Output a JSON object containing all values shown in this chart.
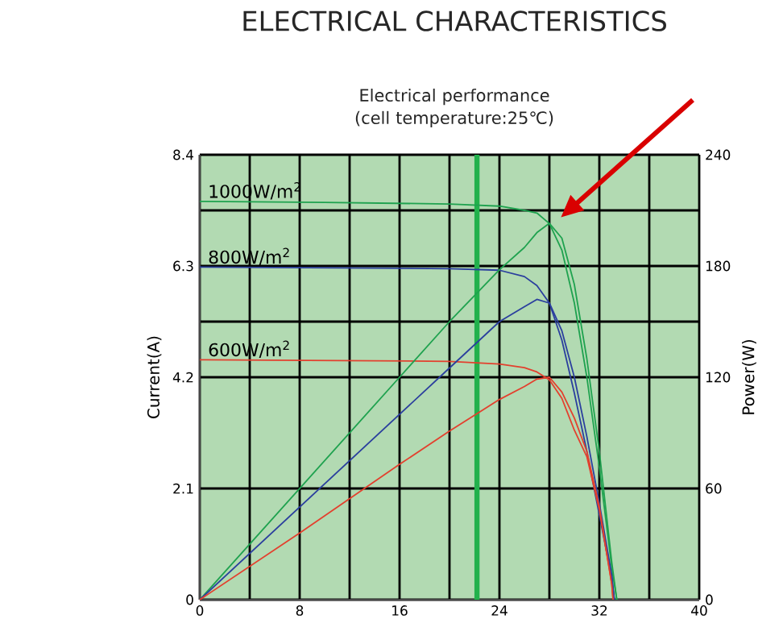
{
  "chart_data": {
    "type": "line",
    "title": "ELECTRICAL CHARACTERISTICS",
    "subtitle": "Electrical performance (cell temperature:25℃)",
    "xlabel": null,
    "ylabel": "Current(A)",
    "y2label": "Power(W)",
    "xlim": [
      0,
      40
    ],
    "xticks": [
      0,
      {
        "value": 4,
        "label": null
      },
      8,
      {
        "value": 12,
        "label": null
      },
      16,
      {
        "value": 20,
        "label": null
      },
      24,
      {
        "value": 28,
        "label": null
      },
      32,
      {
        "value": 36,
        "label": null
      },
      40
    ],
    "ylim": [
      0,
      8.4
    ],
    "yticks": [
      0,
      2.1,
      4.2,
      {
        "value": 5.25,
        "label": null
      },
      6.3,
      {
        "value": 7.35,
        "label": null
      },
      8.4
    ],
    "y2lim": [
      0,
      240
    ],
    "y2ticks": [
      0,
      60,
      120,
      180,
      240
    ],
    "grid": true,
    "legend": false,
    "marker": "none",
    "ref_lines": [
      {
        "axis": "x",
        "value": 22.2,
        "color": "#22b14c"
      }
    ],
    "series": [
      {
        "name": "1000W/m$^{2}$",
        "color": "#1fa24f",
        "x": [
          0,
          10,
          20,
          24,
          26,
          27,
          28,
          29,
          30,
          31,
          32,
          33,
          33.4
        ],
        "values": [
          7.52,
          7.5,
          7.47,
          7.43,
          7.35,
          7.3,
          7.1,
          6.6,
          5.6,
          4.2,
          2.5,
          0.6,
          0
        ]
      },
      {
        "name": "800W/m$^{2}$",
        "color": "#2b3f9e",
        "x": [
          0,
          20,
          24,
          26,
          27,
          28,
          29,
          30,
          31,
          32,
          33,
          33.2
        ],
        "values": [
          6.28,
          6.25,
          6.22,
          6.1,
          5.93,
          5.6,
          4.9,
          3.9,
          2.8,
          1.6,
          0.4,
          0
        ]
      },
      {
        "name": "600W/m$^{2}$",
        "color": "#e3402e",
        "x": [
          0,
          20,
          24,
          26,
          27,
          28,
          29,
          30,
          31,
          32,
          33,
          33.1
        ],
        "values": [
          4.53,
          4.5,
          4.45,
          4.38,
          4.3,
          4.15,
          3.8,
          3.2,
          2.7,
          1.7,
          0.3,
          0
        ]
      },
      {
        "axis": "y2",
        "color": "#1fa24f",
        "x": [
          0,
          8,
          16,
          20,
          24,
          26,
          27,
          28,
          29,
          30,
          31,
          32,
          33,
          33.4
        ],
        "values": [
          0,
          60,
          120,
          150,
          178,
          190,
          198,
          203,
          195,
          170,
          130,
          80,
          20,
          0
        ]
      },
      {
        "axis": "y2",
        "color": "#2b3f9e",
        "x": [
          0,
          8,
          16,
          20,
          24,
          26,
          27,
          28,
          29,
          30,
          31,
          32,
          33,
          33.2
        ],
        "values": [
          0,
          50,
          100,
          125,
          150,
          158,
          162,
          160,
          145,
          120,
          88,
          52,
          13,
          0
        ]
      },
      {
        "axis": "y2",
        "color": "#e3402e",
        "x": [
          0,
          8,
          16,
          20,
          24,
          26,
          27,
          28,
          29,
          30,
          31,
          32,
          33,
          33.1
        ],
        "values": [
          0,
          36,
          73,
          91,
          108,
          115,
          119,
          120,
          112,
          98,
          80,
          50,
          8,
          0
        ]
      }
    ]
  }
}
